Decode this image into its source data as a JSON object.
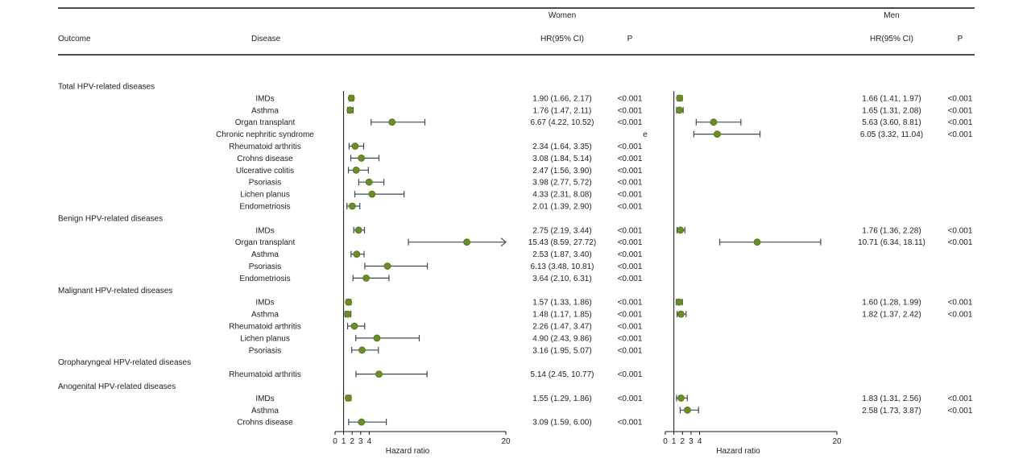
{
  "chart_data": {
    "type": "forest",
    "header": {
      "outcome": "Outcome",
      "disease": "Disease",
      "women": "Women",
      "men": "Men",
      "hr": "HR(95% CI)",
      "p": "P"
    },
    "axis": {
      "label": "Hazard ratio",
      "ticks": [
        0,
        1,
        2,
        3,
        4,
        20
      ],
      "xlim": [
        0,
        20
      ],
      "reference": 1
    },
    "colors": {
      "point": "#6b8e23",
      "ci_line": "#3c4a55"
    },
    "groups": [
      {
        "title": "Total HPV-related diseases",
        "rows": [
          {
            "disease": "IMDs",
            "women": {
              "hr": 1.9,
              "lo": 1.66,
              "hi": 2.17,
              "text": "1.90 (1.66, 2.17)",
              "p": "<0.001"
            },
            "men": {
              "hr": 1.66,
              "lo": 1.41,
              "hi": 1.97,
              "text": "1.66 (1.41, 1.97)",
              "p": "<0.001"
            }
          },
          {
            "disease": "Asthma",
            "women": {
              "hr": 1.76,
              "lo": 1.47,
              "hi": 2.11,
              "text": "1.76 (1.47, 2.11)",
              "p": "<0.001"
            },
            "men": {
              "hr": 1.65,
              "lo": 1.31,
              "hi": 2.08,
              "text": "1.65 (1.31, 2.08)",
              "p": "<0.001"
            }
          },
          {
            "disease": "Organ transplant",
            "women": {
              "hr": 6.67,
              "lo": 4.22,
              "hi": 10.52,
              "text": "6.67 (4.22, 10.52)",
              "p": "<0.001"
            },
            "men": {
              "hr": 5.63,
              "lo": 3.6,
              "hi": 8.81,
              "text": "5.63 (3.60, 8.81)",
              "p": "<0.001"
            }
          },
          {
            "disease": "Chronic nephritic syndrome",
            "women": null,
            "women_p_fragment": "e",
            "men": {
              "hr": 6.05,
              "lo": 3.32,
              "hi": 11.04,
              "text": "6.05 (3.32, 11.04)",
              "p": "<0.001"
            }
          },
          {
            "disease": "Rheumatoid arthritis",
            "women": {
              "hr": 2.34,
              "lo": 1.64,
              "hi": 3.35,
              "text": "2.34 (1.64, 3.35)",
              "p": "<0.001"
            },
            "men": null
          },
          {
            "disease": "Crohns disease",
            "women": {
              "hr": 3.08,
              "lo": 1.84,
              "hi": 5.14,
              "text": "3.08 (1.84, 5.14)",
              "p": "<0.001"
            },
            "men": null
          },
          {
            "disease": "Ulcerative colitis",
            "women": {
              "hr": 2.47,
              "lo": 1.56,
              "hi": 3.9,
              "text": "2.47 (1.56, 3.90)",
              "p": "<0.001"
            },
            "men": null
          },
          {
            "disease": "Psoriasis",
            "women": {
              "hr": 3.98,
              "lo": 2.77,
              "hi": 5.72,
              "text": "3.98 (2.77, 5.72)",
              "p": "<0.001"
            },
            "men": null
          },
          {
            "disease": "Lichen planus",
            "women": {
              "hr": 4.33,
              "lo": 2.31,
              "hi": 8.08,
              "text": "4.33 (2.31, 8.08)",
              "p": "<0.001"
            },
            "men": null
          },
          {
            "disease": "Endometriosis",
            "women": {
              "hr": 2.01,
              "lo": 1.39,
              "hi": 2.9,
              "text": "2.01 (1.39, 2.90)",
              "p": "<0.001"
            },
            "men": null
          }
        ]
      },
      {
        "title": "Benign HPV-related diseases",
        "rows": [
          {
            "disease": "IMDs",
            "women": {
              "hr": 2.75,
              "lo": 2.19,
              "hi": 3.44,
              "text": "2.75 (2.19, 3.44)",
              "p": "<0.001"
            },
            "men": {
              "hr": 1.76,
              "lo": 1.36,
              "hi": 2.28,
              "text": "1.76 (1.36, 2.28)",
              "p": "<0.001"
            }
          },
          {
            "disease": "Organ transplant",
            "women": {
              "hr": 15.43,
              "lo": 8.59,
              "hi": 27.72,
              "text": "15.43 (8.59, 27.72)",
              "p": "<0.001",
              "arrow": true
            },
            "men": {
              "hr": 10.71,
              "lo": 6.34,
              "hi": 18.11,
              "text": "10.71 (6.34, 18.11)",
              "p": "<0.001"
            }
          },
          {
            "disease": "Asthma",
            "women": {
              "hr": 2.53,
              "lo": 1.87,
              "hi": 3.4,
              "text": "2.53 (1.87, 3.40)",
              "p": "<0.001"
            },
            "men": null
          },
          {
            "disease": "Psoriasis",
            "women": {
              "hr": 6.13,
              "lo": 3.48,
              "hi": 10.81,
              "text": "6.13 (3.48, 10.81)",
              "p": "<0.001"
            },
            "men": null
          },
          {
            "disease": "Endometriosis",
            "women": {
              "hr": 3.64,
              "lo": 2.1,
              "hi": 6.31,
              "text": "3.64 (2.10, 6.31)",
              "p": "<0.001"
            },
            "men": null
          }
        ]
      },
      {
        "title": "Malignant HPV-related diseases",
        "rows": [
          {
            "disease": "IMDs",
            "women": {
              "hr": 1.57,
              "lo": 1.33,
              "hi": 1.86,
              "text": "1.57 (1.33, 1.86)",
              "p": "<0.001"
            },
            "men": {
              "hr": 1.6,
              "lo": 1.28,
              "hi": 1.99,
              "text": "1.60 (1.28, 1.99)",
              "p": "<0.001"
            }
          },
          {
            "disease": "Asthma",
            "women": {
              "hr": 1.48,
              "lo": 1.17,
              "hi": 1.85,
              "text": "1.48 (1.17, 1.85)",
              "p": "<0.001"
            },
            "men": {
              "hr": 1.82,
              "lo": 1.37,
              "hi": 2.42,
              "text": "1.82 (1.37, 2.42)",
              "p": "<0.001"
            }
          },
          {
            "disease": "Rheumatoid arthritis",
            "women": {
              "hr": 2.26,
              "lo": 1.47,
              "hi": 3.47,
              "text": "2.26 (1.47, 3.47)",
              "p": "<0.001"
            },
            "men": null
          },
          {
            "disease": "Lichen planus",
            "women": {
              "hr": 4.9,
              "lo": 2.43,
              "hi": 9.86,
              "text": "4.90 (2.43, 9.86)",
              "p": "<0.001"
            },
            "men": null
          },
          {
            "disease": "Psoriasis",
            "women": {
              "hr": 3.16,
              "lo": 1.95,
              "hi": 5.07,
              "text": "3.16 (1.95, 5.07)",
              "p": "<0.001"
            },
            "men": null
          }
        ]
      },
      {
        "title": "Oropharyngeal HPV-related diseases",
        "rows": [
          {
            "disease": "Rheumatoid arthritis",
            "women": {
              "hr": 5.14,
              "lo": 2.45,
              "hi": 10.77,
              "text": "5.14 (2.45, 10.77)",
              "p": "<0.001"
            },
            "men": null
          }
        ]
      },
      {
        "title": "Anogenital HPV-related diseases",
        "rows": [
          {
            "disease": "IMDs",
            "women": {
              "hr": 1.55,
              "lo": 1.29,
              "hi": 1.86,
              "text": "1.55 (1.29, 1.86)",
              "p": "<0.001"
            },
            "men": {
              "hr": 1.83,
              "lo": 1.31,
              "hi": 2.56,
              "text": "1.83 (1.31, 2.56)",
              "p": "<0.001"
            }
          },
          {
            "disease": "Asthma",
            "women": null,
            "men": {
              "hr": 2.58,
              "lo": 1.73,
              "hi": 3.87,
              "text": "2.58 (1.73, 3.87)",
              "p": "<0.001"
            }
          },
          {
            "disease": "Crohns disease",
            "women": {
              "hr": 3.09,
              "lo": 1.59,
              "hi": 6.0,
              "text": "3.09 (1.59, 6.00)",
              "p": "<0.001"
            },
            "men": null
          }
        ]
      }
    ]
  }
}
